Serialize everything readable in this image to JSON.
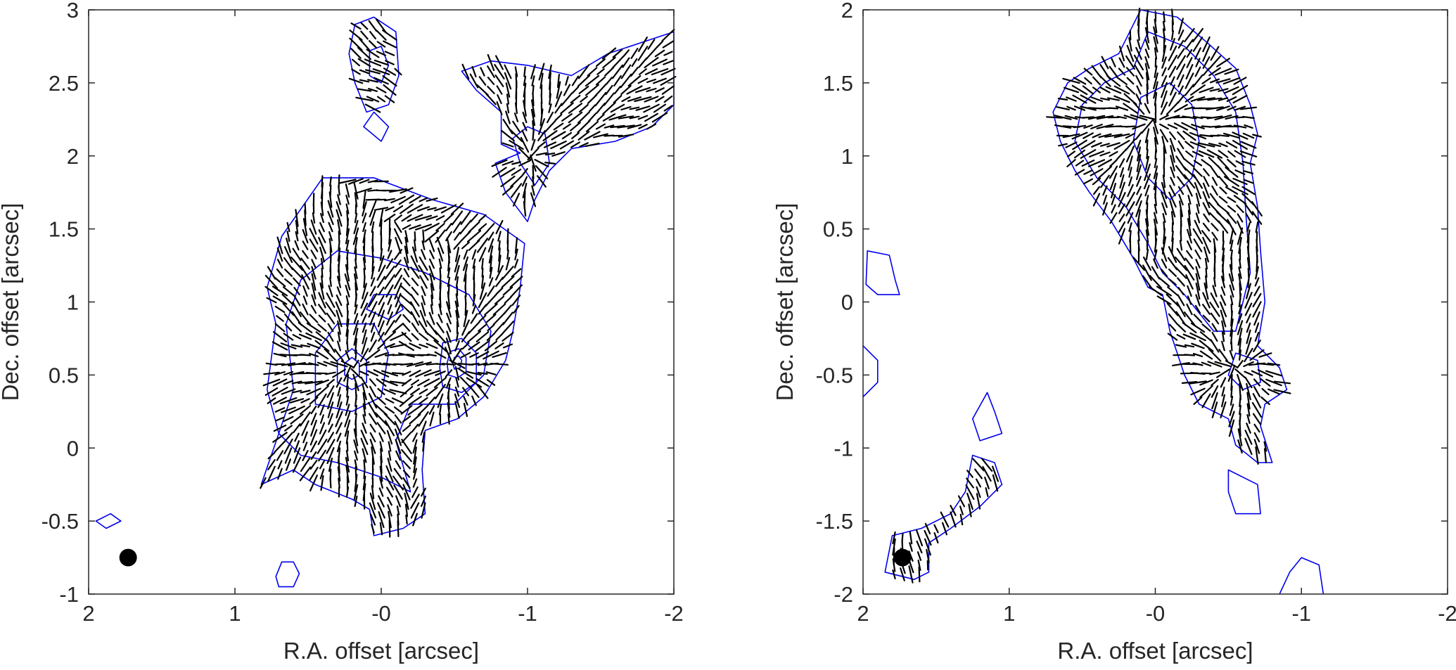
{
  "chart_data": [
    {
      "type": "scatter",
      "panel": "left",
      "xlabel": "R.A. offset [arcsec]",
      "ylabel": "Dec. offset [arcsec]",
      "xlim": [
        2,
        -2
      ],
      "ylim": [
        -1,
        3
      ],
      "x_reversed": true,
      "x_ticks": [
        "2",
        "1",
        "-0",
        "-1",
        "-2"
      ],
      "y_ticks": [
        "-1",
        "-0.5",
        "0",
        "0.5",
        "1",
        "1.5",
        "2",
        "2.5",
        "3"
      ],
      "grid": false,
      "contour_color": "#0000ee",
      "vector_color": "#000000",
      "beam": {
        "x": 1.73,
        "y": -0.75,
        "diameter": 0.12
      },
      "sources": [
        {
          "x": 0.2,
          "y": 0.55
        },
        {
          "x": -0.5,
          "y": 0.58
        },
        {
          "x": -1.02,
          "y": 1.98
        }
      ],
      "contours": [
        [
          [
            0.82,
            -0.25
          ],
          [
            0.7,
            0.1
          ],
          [
            0.78,
            0.4
          ],
          [
            0.72,
            0.85
          ],
          [
            0.78,
            1.1
          ],
          [
            0.68,
            1.45
          ],
          [
            0.4,
            1.85
          ],
          [
            0.05,
            1.85
          ],
          [
            -0.35,
            1.7
          ],
          [
            -0.7,
            1.6
          ],
          [
            -0.98,
            1.4
          ],
          [
            -0.95,
            1.1
          ],
          [
            -0.9,
            0.8
          ],
          [
            -0.85,
            0.6
          ],
          [
            -0.7,
            0.35
          ],
          [
            -0.52,
            0.2
          ],
          [
            -0.3,
            0.12
          ],
          [
            -0.28,
            -0.15
          ],
          [
            -0.3,
            -0.45
          ],
          [
            -0.15,
            -0.55
          ],
          [
            0.05,
            -0.6
          ],
          [
            0.08,
            -0.42
          ],
          [
            0.2,
            -0.35
          ],
          [
            0.45,
            -0.25
          ],
          [
            0.6,
            -0.15
          ],
          [
            0.82,
            -0.25
          ]
        ],
        [
          [
            0.7,
            0.1
          ],
          [
            0.6,
            0.4
          ],
          [
            0.65,
            0.85
          ],
          [
            0.55,
            1.15
          ],
          [
            0.3,
            1.35
          ],
          [
            0.0,
            1.3
          ],
          [
            -0.3,
            1.2
          ],
          [
            -0.6,
            1.05
          ],
          [
            -0.75,
            0.8
          ],
          [
            -0.7,
            0.5
          ],
          [
            -0.5,
            0.3
          ],
          [
            -0.2,
            0.3
          ],
          [
            -0.1,
            0.05
          ],
          [
            -0.2,
            -0.3
          ],
          [
            0.0,
            -0.2
          ],
          [
            0.3,
            -0.1
          ],
          [
            0.55,
            -0.05
          ],
          [
            0.7,
            0.1
          ]
        ],
        [
          [
            0.45,
            0.3
          ],
          [
            0.45,
            0.65
          ],
          [
            0.3,
            0.85
          ],
          [
            0.05,
            0.85
          ],
          [
            -0.05,
            0.65
          ],
          [
            0.0,
            0.35
          ],
          [
            0.2,
            0.25
          ],
          [
            0.45,
            0.3
          ]
        ],
        [
          [
            0.3,
            0.45
          ],
          [
            0.3,
            0.6
          ],
          [
            0.2,
            0.68
          ],
          [
            0.1,
            0.6
          ],
          [
            0.1,
            0.45
          ],
          [
            0.2,
            0.4
          ],
          [
            0.3,
            0.45
          ]
        ],
        [
          [
            0.25,
            0.5
          ],
          [
            0.25,
            0.58
          ],
          [
            0.2,
            0.62
          ],
          [
            0.15,
            0.58
          ],
          [
            0.15,
            0.5
          ],
          [
            0.2,
            0.47
          ],
          [
            0.25,
            0.5
          ]
        ],
        [
          [
            -0.4,
            0.55
          ],
          [
            -0.42,
            0.72
          ],
          [
            -0.55,
            0.75
          ],
          [
            -0.65,
            0.65
          ],
          [
            -0.65,
            0.45
          ],
          [
            -0.55,
            0.38
          ],
          [
            -0.42,
            0.42
          ],
          [
            -0.4,
            0.55
          ]
        ],
        [
          [
            -0.45,
            0.58
          ],
          [
            -0.47,
            0.66
          ],
          [
            -0.53,
            0.68
          ],
          [
            -0.58,
            0.62
          ],
          [
            -0.58,
            0.52
          ],
          [
            -0.52,
            0.48
          ],
          [
            -0.46,
            0.5
          ],
          [
            -0.45,
            0.58
          ]
        ],
        [
          [
            -0.49,
            0.58
          ],
          [
            -0.5,
            0.62
          ],
          [
            -0.53,
            0.63
          ],
          [
            -0.55,
            0.6
          ],
          [
            -0.54,
            0.55
          ],
          [
            -0.5,
            0.54
          ],
          [
            -0.49,
            0.58
          ]
        ],
        [
          [
            0.1,
            0.95
          ],
          [
            0.05,
            1.05
          ],
          [
            -0.1,
            1.05
          ],
          [
            -0.15,
            0.95
          ],
          [
            -0.05,
            0.88
          ],
          [
            0.1,
            0.95
          ]
        ],
        [
          [
            0.72,
            -0.88
          ],
          [
            0.68,
            -0.78
          ],
          [
            0.6,
            -0.78
          ],
          [
            0.56,
            -0.86
          ],
          [
            0.6,
            -0.95
          ],
          [
            0.7,
            -0.95
          ],
          [
            0.72,
            -0.88
          ]
        ],
        [
          [
            1.85,
            -0.45
          ],
          [
            1.78,
            -0.5
          ],
          [
            1.88,
            -0.55
          ],
          [
            1.95,
            -0.5
          ],
          [
            1.85,
            -0.45
          ]
        ],
        [
          [
            -0.95,
            2.02
          ],
          [
            -0.82,
            2.08
          ],
          [
            -0.82,
            2.3
          ],
          [
            -0.65,
            2.45
          ],
          [
            -0.55,
            2.58
          ],
          [
            -0.75,
            2.65
          ],
          [
            -1.0,
            2.62
          ],
          [
            -1.3,
            2.55
          ],
          [
            -1.55,
            2.7
          ],
          [
            -1.85,
            2.8
          ],
          [
            -2.0,
            2.85
          ],
          [
            -2.0,
            2.35
          ],
          [
            -1.85,
            2.2
          ],
          [
            -1.6,
            2.1
          ],
          [
            -1.3,
            2.05
          ],
          [
            -1.15,
            1.9
          ],
          [
            -1.05,
            1.7
          ],
          [
            -1.0,
            1.55
          ],
          [
            -0.85,
            1.75
          ],
          [
            -0.78,
            1.95
          ],
          [
            -0.95,
            2.02
          ]
        ],
        [
          [
            -1.0,
            2.2
          ],
          [
            -0.9,
            2.12
          ],
          [
            -0.95,
            1.95
          ],
          [
            -1.05,
            1.8
          ],
          [
            -1.15,
            1.95
          ],
          [
            -1.12,
            2.15
          ],
          [
            -1.0,
            2.2
          ]
        ],
        [
          [
            0.18,
            2.9
          ],
          [
            0.05,
            2.95
          ],
          [
            -0.1,
            2.85
          ],
          [
            -0.12,
            2.55
          ],
          [
            -0.05,
            2.35
          ],
          [
            0.1,
            2.3
          ],
          [
            0.18,
            2.5
          ],
          [
            0.22,
            2.7
          ],
          [
            0.18,
            2.9
          ]
        ],
        [
          [
            0.08,
            2.72
          ],
          [
            0.0,
            2.75
          ],
          [
            -0.05,
            2.62
          ],
          [
            0.0,
            2.5
          ],
          [
            0.08,
            2.55
          ],
          [
            0.08,
            2.72
          ]
        ],
        [
          [
            0.12,
            2.2
          ],
          [
            0.05,
            2.3
          ],
          [
            -0.05,
            2.2
          ],
          [
            0.0,
            2.1
          ],
          [
            0.12,
            2.2
          ]
        ]
      ]
    },
    {
      "type": "scatter",
      "panel": "right",
      "xlabel": "R.A. offset [arcsec]",
      "ylabel": "Dec. offset [arcsec]",
      "xlim": [
        2,
        -2
      ],
      "ylim": [
        -2,
        2
      ],
      "x_reversed": true,
      "x_ticks": [
        "2",
        "1",
        "-0",
        "-1",
        "-2"
      ],
      "y_ticks": [
        "-2",
        "-1.5",
        "-1",
        "-0.5",
        "0",
        "0.5",
        "1",
        "1.5",
        "2"
      ],
      "grid": false,
      "contour_color": "#0000ee",
      "vector_color": "#000000",
      "beam": {
        "x": 1.73,
        "y": -1.75,
        "diameter": 0.12
      },
      "sources": [
        {
          "x": 0.0,
          "y": 1.25
        },
        {
          "x": -0.55,
          "y": -0.45
        },
        {
          "x": 1.88,
          "y": 0.15
        },
        {
          "x": -1.0,
          "y": -1.8
        }
      ],
      "contours": [
        [
          [
            0.1,
            2.0
          ],
          [
            -0.15,
            1.95
          ],
          [
            -0.35,
            1.78
          ],
          [
            -0.55,
            1.6
          ],
          [
            -0.65,
            1.35
          ],
          [
            -0.7,
            1.15
          ],
          [
            -0.65,
            0.95
          ],
          [
            -0.7,
            0.65
          ],
          [
            -0.72,
            0.35
          ],
          [
            -0.75,
            0.0
          ],
          [
            -0.7,
            -0.3
          ],
          [
            -0.85,
            -0.45
          ],
          [
            -0.9,
            -0.6
          ],
          [
            -0.75,
            -0.7
          ],
          [
            -0.72,
            -0.85
          ],
          [
            -0.8,
            -1.1
          ],
          [
            -0.7,
            -1.1
          ],
          [
            -0.55,
            -0.98
          ],
          [
            -0.5,
            -0.8
          ],
          [
            -0.3,
            -0.7
          ],
          [
            -0.2,
            -0.5
          ],
          [
            -0.1,
            -0.2
          ],
          [
            -0.05,
            0.05
          ],
          [
            0.05,
            0.1
          ],
          [
            0.15,
            0.3
          ],
          [
            0.3,
            0.55
          ],
          [
            0.45,
            0.75
          ],
          [
            0.55,
            0.9
          ],
          [
            0.65,
            1.1
          ],
          [
            0.7,
            1.3
          ],
          [
            0.6,
            1.5
          ],
          [
            0.45,
            1.6
          ],
          [
            0.25,
            1.7
          ],
          [
            0.15,
            1.9
          ],
          [
            0.1,
            2.0
          ]
        ],
        [
          [
            0.05,
            1.85
          ],
          [
            -0.2,
            1.75
          ],
          [
            -0.4,
            1.55
          ],
          [
            -0.55,
            1.3
          ],
          [
            -0.6,
            0.95
          ],
          [
            -0.62,
            0.6
          ],
          [
            -0.65,
            0.2
          ],
          [
            -0.55,
            -0.2
          ],
          [
            -0.4,
            -0.2
          ],
          [
            -0.2,
            0.05
          ],
          [
            -0.05,
            0.2
          ],
          [
            0.05,
            0.4
          ],
          [
            0.2,
            0.65
          ],
          [
            0.4,
            0.85
          ],
          [
            0.55,
            1.1
          ],
          [
            0.5,
            1.35
          ],
          [
            0.35,
            1.5
          ],
          [
            0.15,
            1.6
          ],
          [
            0.05,
            1.85
          ]
        ],
        [
          [
            0.1,
            1.4
          ],
          [
            -0.1,
            1.5
          ],
          [
            -0.25,
            1.35
          ],
          [
            -0.3,
            1.1
          ],
          [
            -0.25,
            0.85
          ],
          [
            -0.1,
            0.7
          ],
          [
            0.05,
            0.85
          ],
          [
            0.15,
            1.1
          ],
          [
            0.1,
            1.4
          ]
        ],
        [
          [
            -0.55,
            -0.35
          ],
          [
            -0.7,
            -0.4
          ],
          [
            -0.72,
            -0.55
          ],
          [
            -0.6,
            -0.6
          ],
          [
            -0.5,
            -0.5
          ],
          [
            -0.55,
            -0.35
          ]
        ],
        [
          [
            1.97,
            0.35
          ],
          [
            1.82,
            0.32
          ],
          [
            1.78,
            0.15
          ],
          [
            1.75,
            0.05
          ],
          [
            1.9,
            0.05
          ],
          [
            1.98,
            0.12
          ],
          [
            1.97,
            0.35
          ]
        ],
        [
          [
            2.0,
            -0.3
          ],
          [
            1.9,
            -0.4
          ],
          [
            1.9,
            -0.55
          ],
          [
            2.0,
            -0.65
          ]
        ],
        [
          [
            1.15,
            -0.62
          ],
          [
            1.1,
            -0.75
          ],
          [
            1.05,
            -0.9
          ],
          [
            1.2,
            -0.95
          ],
          [
            1.25,
            -0.8
          ],
          [
            1.15,
            -0.62
          ]
        ],
        [
          [
            1.25,
            -1.05
          ],
          [
            1.1,
            -1.1
          ],
          [
            1.05,
            -1.25
          ],
          [
            1.2,
            -1.4
          ],
          [
            1.4,
            -1.55
          ],
          [
            1.55,
            -1.65
          ],
          [
            1.55,
            -1.85
          ],
          [
            1.65,
            -1.9
          ],
          [
            1.85,
            -1.85
          ],
          [
            1.8,
            -1.6
          ],
          [
            1.6,
            -1.55
          ],
          [
            1.4,
            -1.45
          ],
          [
            1.3,
            -1.3
          ],
          [
            1.25,
            -1.05
          ]
        ],
        [
          [
            -0.5,
            -1.15
          ],
          [
            -0.7,
            -1.25
          ],
          [
            -0.72,
            -1.45
          ],
          [
            -0.55,
            -1.45
          ],
          [
            -0.5,
            -1.3
          ],
          [
            -0.5,
            -1.15
          ]
        ],
        [
          [
            -0.85,
            -2.0
          ],
          [
            -0.92,
            -1.85
          ],
          [
            -1.0,
            -1.75
          ],
          [
            -1.12,
            -1.8
          ],
          [
            -1.15,
            -2.0
          ]
        ]
      ]
    }
  ]
}
